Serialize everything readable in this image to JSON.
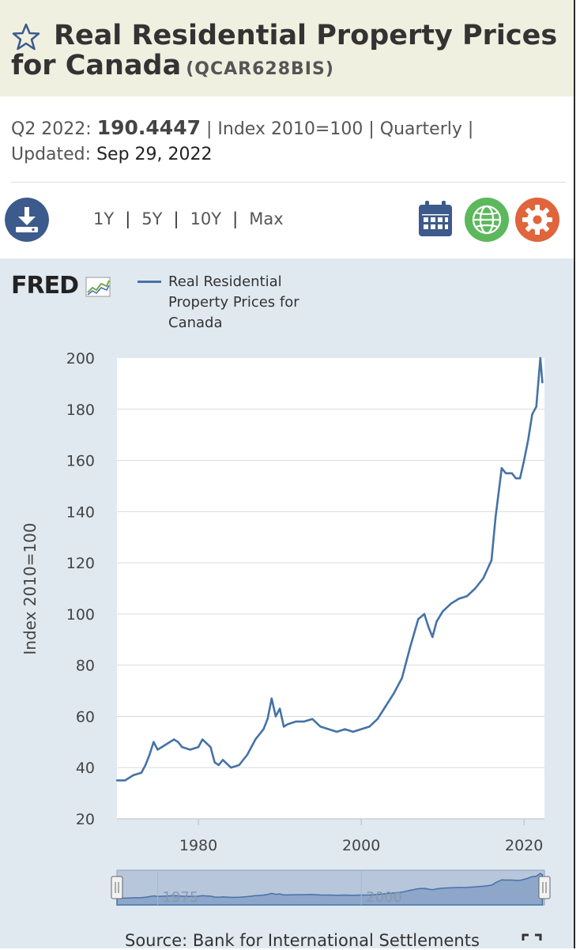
{
  "header": {
    "title": "Real Residential Property Prices for Canada",
    "series_id": "(QCAR628BIS)"
  },
  "meta": {
    "period": "Q2 2022:",
    "value": "190.4447",
    "units": "| Index 2010=100 | Quarterly |",
    "updated_label": "Updated:",
    "updated_date": "Sep 29, 2022"
  },
  "toolbar": {
    "ranges": [
      "1Y",
      "5Y",
      "10Y",
      "Max"
    ]
  },
  "logo": "FRED",
  "source": "Source: Bank for International Settlements",
  "colors": {
    "line": "#4572a7",
    "title_bg": "#eff0e0",
    "chart_bg": "#e1e9f0",
    "download": "#3c5a8c",
    "calendar": "#3c5a8c",
    "globe": "#5cb85c",
    "gear": "#e0643c"
  },
  "chart_data": {
    "type": "line",
    "title": "",
    "xlabel": "",
    "ylabel": "Index 2010=100",
    "legend": "Real Residential Property Prices for Canada",
    "legend_position": "top",
    "xlim": [
      1970,
      2022.5
    ],
    "ylim": [
      20,
      200
    ],
    "xticks": [
      1980,
      2000,
      2020
    ],
    "yticks": [
      20,
      40,
      60,
      80,
      100,
      120,
      140,
      160,
      180,
      200
    ],
    "grid": "horizontal",
    "navigator_labels": [
      "1975",
      "2000"
    ],
    "series": [
      {
        "name": "Real Residential Property Prices for Canada",
        "x": [
          1970,
          1971,
          1972,
          1973,
          1973.5,
          1974,
          1974.5,
          1975,
          1976,
          1977,
          1977.5,
          1978,
          1979,
          1980,
          1980.5,
          1981.5,
          1982,
          1982.5,
          1983,
          1984,
          1985,
          1986,
          1987,
          1988,
          1988.5,
          1989,
          1989.5,
          1990,
          1990.5,
          1991,
          1992,
          1993,
          1994,
          1995,
          1996,
          1997,
          1998,
          1999,
          2000,
          2001,
          2002,
          2003,
          2004,
          2005,
          2006,
          2007,
          2007.75,
          2008.25,
          2008.75,
          2009.25,
          2010,
          2011,
          2012,
          2013,
          2014,
          2015,
          2016,
          2016.5,
          2017.25,
          2017.75,
          2018.5,
          2019,
          2019.5,
          2020,
          2020.5,
          2021,
          2021.5,
          2022,
          2022.25
        ],
        "values": [
          35,
          35,
          37,
          38,
          41,
          45,
          50,
          47,
          49,
          51,
          50,
          48,
          47,
          48,
          51,
          48,
          42,
          41,
          43,
          40,
          41,
          45,
          51,
          55,
          59,
          67,
          60,
          63,
          56,
          57,
          58,
          58,
          59,
          56,
          55,
          54,
          55,
          54,
          55,
          56,
          59,
          64,
          69,
          75,
          87,
          98,
          100,
          95,
          91,
          97,
          101,
          104,
          106,
          107,
          110,
          114,
          121,
          138,
          157,
          155,
          155,
          153,
          153,
          160,
          168,
          178,
          181,
          200,
          190.4447
        ]
      }
    ]
  }
}
